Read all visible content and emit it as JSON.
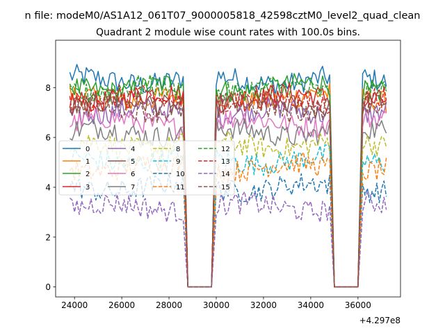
{
  "figure": {
    "suptitle": "n file: modeM0/AS1A12_061T07_9000005818_42598cztM0_level2_quad_clean",
    "offset_label": "+4.297e8"
  },
  "chart_data": {
    "type": "line",
    "title": "Quadrant 2 module wise count rates with 100.0s bins.",
    "xlabel": "",
    "ylabel": "",
    "x_offset": 429700000,
    "xlim": [
      23200,
      37800
    ],
    "ylim": [
      -0.4,
      9.9
    ],
    "xticks": [
      24000,
      26000,
      28000,
      30000,
      32000,
      34000,
      36000
    ],
    "yticks": [
      0,
      2,
      4,
      6,
      8
    ],
    "grid": false,
    "legend": {
      "placement": "center-left",
      "columns": 4
    },
    "segments": [
      {
        "x_start": 23800,
        "x_end": 28600
      },
      {
        "x_start": 30000,
        "x_end": 34800
      },
      {
        "x_start": 36200,
        "x_end": 37200
      }
    ],
    "gaps": [
      {
        "x_start": 28800,
        "x_end": 29800,
        "value": 0
      },
      {
        "x_start": 35000,
        "x_end": 36000,
        "value": 0
      }
    ],
    "series": [
      {
        "name": "0",
        "mean": 8.3,
        "color": "#1f77b4",
        "dash": "solid"
      },
      {
        "name": "1",
        "mean": 7.6,
        "color": "#ff7f0e",
        "dash": "solid"
      },
      {
        "name": "2",
        "mean": 8.0,
        "color": "#2ca02c",
        "dash": "solid"
      },
      {
        "name": "3",
        "mean": 7.6,
        "color": "#d62728",
        "dash": "solid"
      },
      {
        "name": "4",
        "mean": 7.0,
        "color": "#9467bd",
        "dash": "solid"
      },
      {
        "name": "5",
        "mean": 7.3,
        "color": "#8c564b",
        "dash": "solid"
      },
      {
        "name": "6",
        "mean": 6.6,
        "color": "#e377c2",
        "dash": "solid"
      },
      {
        "name": "7",
        "mean": 6.2,
        "color": "#7f7f7f",
        "dash": "solid"
      },
      {
        "name": "8",
        "mean": 5.7,
        "color": "#bcbd22",
        "dash": "dashed"
      },
      {
        "name": "9",
        "mean": 5.1,
        "color": "#17becf",
        "dash": "dashed"
      },
      {
        "name": "10",
        "mean": 4.0,
        "color": "#1f77b4",
        "dash": "dashed"
      },
      {
        "name": "11",
        "mean": 4.8,
        "color": "#ff7f0e",
        "dash": "dashed"
      },
      {
        "name": "12",
        "mean": 7.9,
        "color": "#2ca02c",
        "dash": "dashed"
      },
      {
        "name": "13",
        "mean": 7.5,
        "color": "#d62728",
        "dash": "dashed"
      },
      {
        "name": "14",
        "mean": 3.2,
        "color": "#9467bd",
        "dash": "dashed"
      },
      {
        "name": "15",
        "mean": 7.2,
        "color": "#8c564b",
        "dash": "dashed"
      }
    ]
  }
}
